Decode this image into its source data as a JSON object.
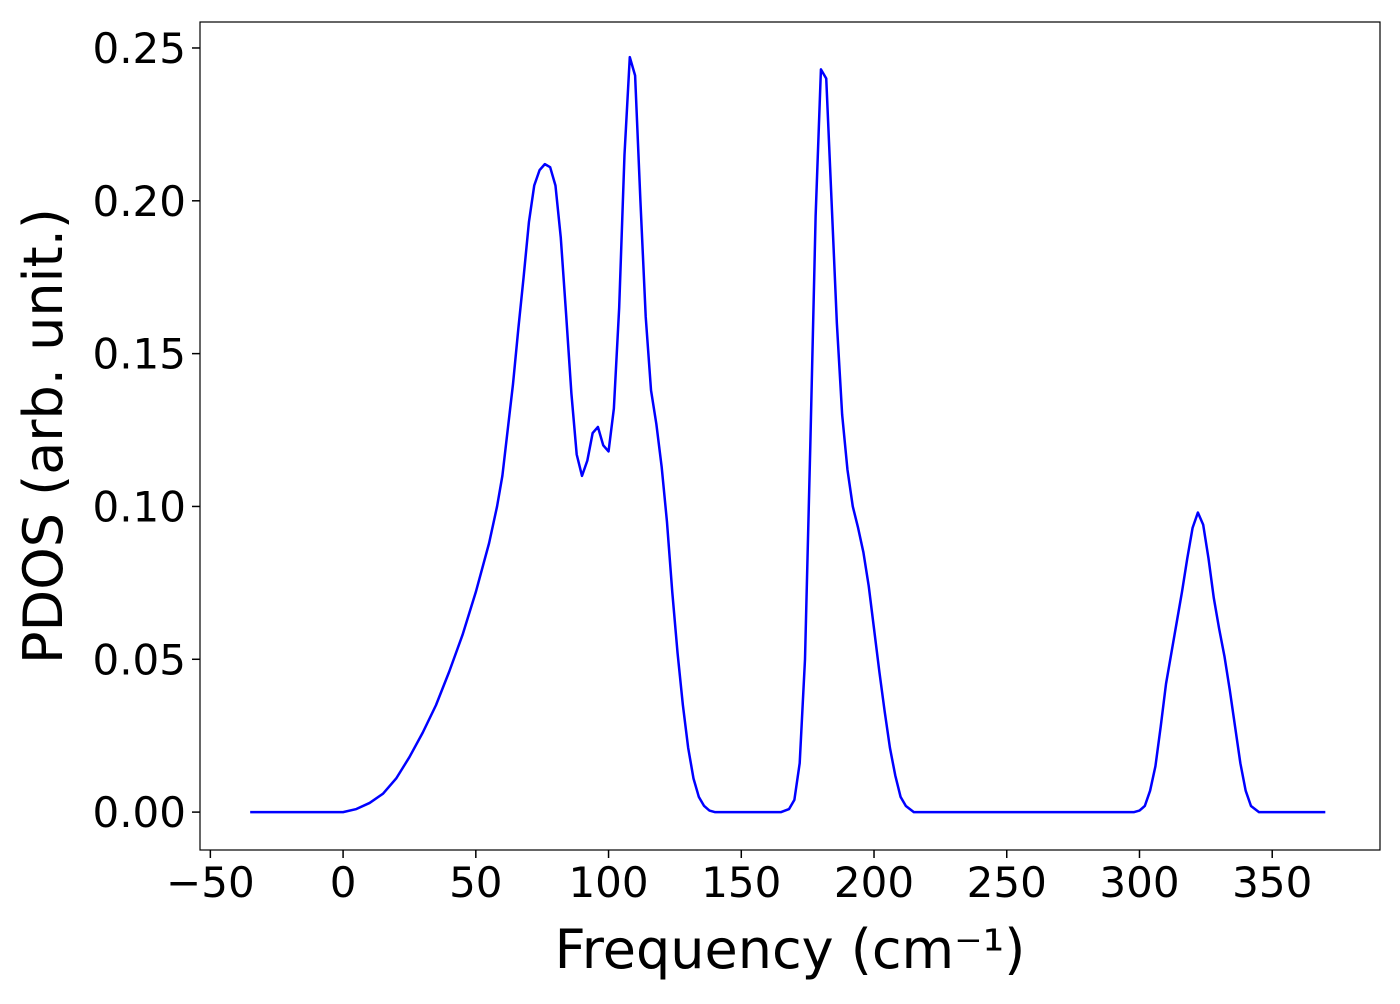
{
  "chart_data": {
    "type": "line",
    "xlabel": "Frequency (cm⁻¹)",
    "ylabel": "PDOS (arb. unit.)",
    "color": "#0000ff",
    "x": [
      -35,
      0,
      5,
      10,
      15,
      20,
      25,
      30,
      35,
      40,
      45,
      50,
      55,
      58,
      60,
      62,
      64,
      66,
      68,
      70,
      72,
      74,
      76,
      78,
      80,
      82,
      84,
      86,
      88,
      90,
      92,
      94,
      96,
      98,
      100,
      102,
      104,
      106,
      108,
      110,
      112,
      114,
      116,
      118,
      120,
      122,
      124,
      126,
      128,
      130,
      132,
      134,
      136,
      138,
      140,
      145,
      165,
      168,
      170,
      172,
      174,
      176,
      178,
      180,
      182,
      184,
      186,
      188,
      190,
      192,
      194,
      196,
      198,
      200,
      202,
      204,
      206,
      208,
      210,
      212,
      215,
      220,
      298,
      300,
      302,
      304,
      306,
      308,
      310,
      312,
      314,
      316,
      318,
      320,
      322,
      324,
      326,
      328,
      330,
      332,
      334,
      336,
      338,
      340,
      342,
      345,
      370
    ],
    "values": [
      0,
      0,
      0.001,
      0.003,
      0.006,
      0.011,
      0.018,
      0.026,
      0.035,
      0.046,
      0.058,
      0.072,
      0.088,
      0.1,
      0.11,
      0.125,
      0.14,
      0.158,
      0.175,
      0.193,
      0.205,
      0.21,
      0.212,
      0.211,
      0.205,
      0.188,
      0.163,
      0.137,
      0.117,
      0.11,
      0.115,
      0.124,
      0.126,
      0.12,
      0.118,
      0.132,
      0.165,
      0.215,
      0.247,
      0.241,
      0.2,
      0.162,
      0.138,
      0.127,
      0.113,
      0.095,
      0.072,
      0.052,
      0.035,
      0.021,
      0.011,
      0.005,
      0.002,
      0.0005,
      0,
      0,
      0,
      0.001,
      0.004,
      0.016,
      0.05,
      0.12,
      0.195,
      0.243,
      0.24,
      0.2,
      0.16,
      0.13,
      0.112,
      0.1,
      0.093,
      0.085,
      0.074,
      0.06,
      0.046,
      0.033,
      0.021,
      0.012,
      0.005,
      0.002,
      0,
      0,
      0,
      0.0005,
      0.002,
      0.007,
      0.015,
      0.028,
      0.042,
      0.052,
      0.062,
      0.072,
      0.083,
      0.093,
      0.098,
      0.094,
      0.083,
      0.07,
      0.06,
      0.051,
      0.04,
      0.028,
      0.016,
      0.007,
      0.002,
      0,
      0
    ],
    "xlim": [
      -53.9,
      390.6
    ],
    "ylim": [
      -0.0124,
      0.2585
    ],
    "xticks": [
      {
        "value": -50,
        "label": "−50"
      },
      0,
      50,
      100,
      150,
      200,
      250,
      300,
      350
    ],
    "yticks": [
      {
        "value": 0,
        "label": "0.00"
      },
      0.05,
      {
        "value": 0.1,
        "label": "0.10"
      },
      0.15,
      {
        "value": 0.2,
        "label": "0.20"
      },
      0.25
    ]
  }
}
